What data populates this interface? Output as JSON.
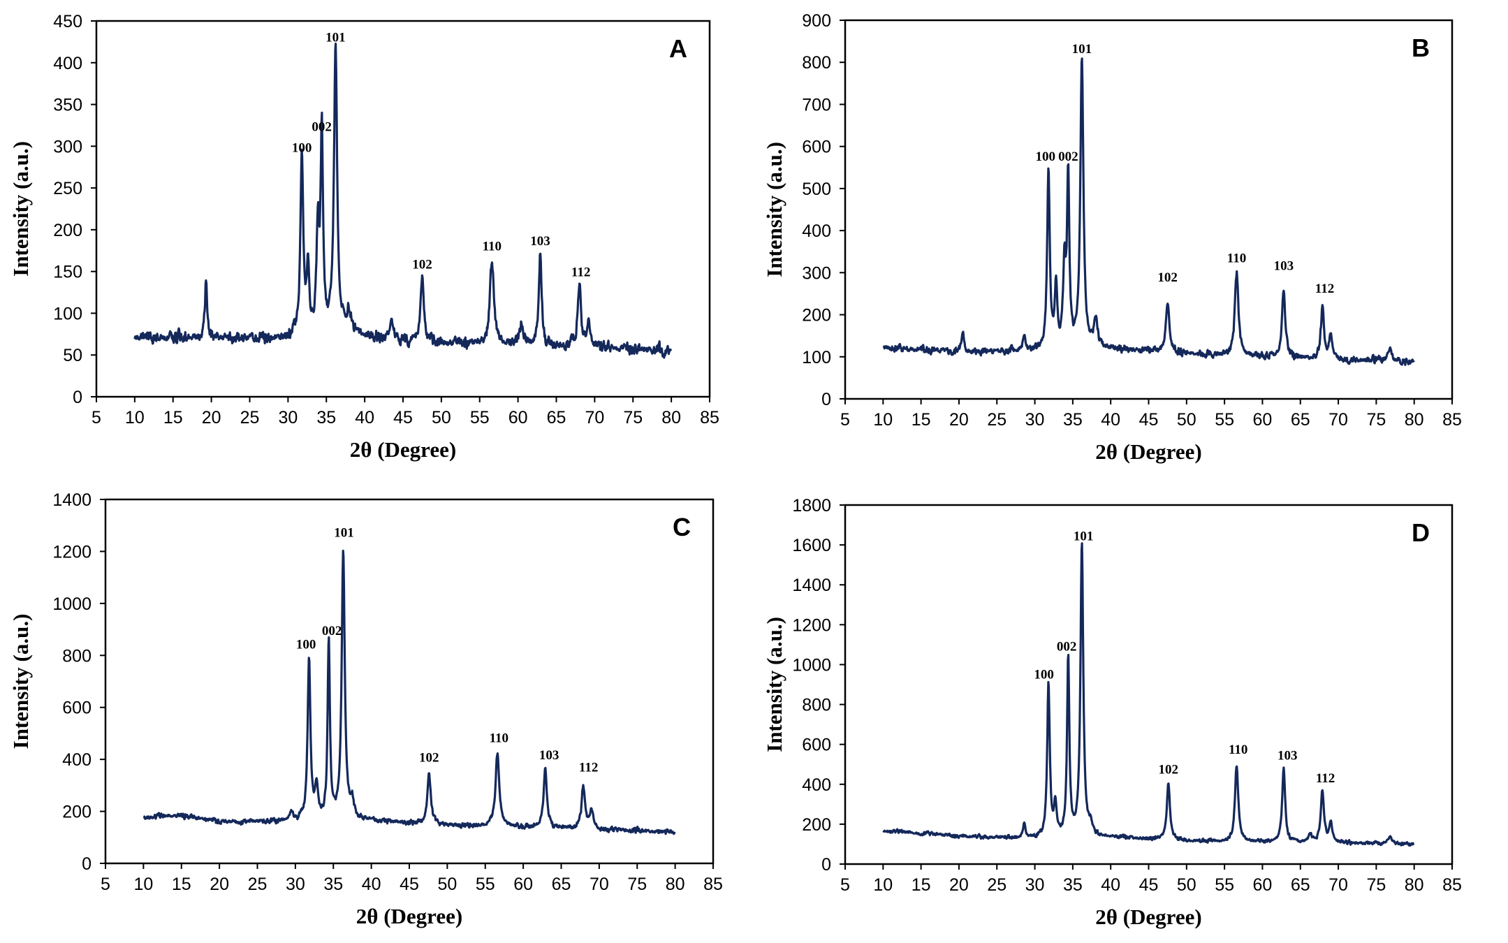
{
  "chart_data": [
    {
      "type": "line",
      "panel": "A",
      "xlabel": "2θ (Degree)",
      "ylabel": "Intensity (a.u.)",
      "xlim": [
        5,
        85
      ],
      "ylim": [
        0,
        450
      ],
      "xticks": [
        5,
        10,
        15,
        20,
        25,
        30,
        35,
        40,
        45,
        50,
        55,
        60,
        65,
        70,
        75,
        80,
        85
      ],
      "yticks": [
        0,
        50,
        100,
        150,
        200,
        250,
        300,
        350,
        400,
        450
      ],
      "line_color": "#14285a",
      "baseline": [
        [
          10,
          72
        ],
        [
          30,
          70
        ],
        [
          36,
          78
        ],
        [
          45,
          66
        ],
        [
          60,
          62
        ],
        [
          80,
          55
        ]
      ],
      "noise": 9,
      "seed": 3,
      "peaks": [
        {
          "x": 19.3,
          "h": 70,
          "w": 0.16
        },
        {
          "x": 31.8,
          "h": 218,
          "w": 0.22
        },
        {
          "x": 32.6,
          "h": 80,
          "w": 0.18
        },
        {
          "x": 33.9,
          "h": 120,
          "w": 0.2
        },
        {
          "x": 34.4,
          "h": 238,
          "w": 0.18
        },
        {
          "x": 36.2,
          "h": 345,
          "w": 0.24
        },
        {
          "x": 38.0,
          "h": 28,
          "w": 0.3
        },
        {
          "x": 43.5,
          "h": 25,
          "w": 0.3
        },
        {
          "x": 47.5,
          "h": 80,
          "w": 0.25
        },
        {
          "x": 56.6,
          "h": 104,
          "w": 0.28
        },
        {
          "x": 60.5,
          "h": 24,
          "w": 0.25
        },
        {
          "x": 62.9,
          "h": 110,
          "w": 0.22
        },
        {
          "x": 68.0,
          "h": 76,
          "w": 0.25
        },
        {
          "x": 69.2,
          "h": 30,
          "w": 0.25
        }
      ],
      "peak_labels": [
        {
          "text": "100",
          "x": 31.8,
          "y": 290
        },
        {
          "text": "002",
          "x": 34.4,
          "y": 315
        },
        {
          "text": "101",
          "x": 36.2,
          "y": 422
        },
        {
          "text": "102",
          "x": 47.5,
          "y": 150
        },
        {
          "text": "110",
          "x": 56.6,
          "y": 172
        },
        {
          "text": "103",
          "x": 62.9,
          "y": 178
        },
        {
          "text": "112",
          "x": 68.2,
          "y": 141
        }
      ]
    },
    {
      "type": "line",
      "panel": "B",
      "xlabel": "2θ (Degree)",
      "ylabel": "Intensity (a.u.)",
      "xlim": [
        5,
        85
      ],
      "ylim": [
        0,
        900
      ],
      "xticks": [
        5,
        10,
        15,
        20,
        25,
        30,
        35,
        40,
        45,
        50,
        55,
        60,
        65,
        70,
        75,
        80,
        85
      ],
      "yticks": [
        0,
        100,
        200,
        300,
        400,
        500,
        600,
        700,
        800,
        900
      ],
      "line_color": "#14285a",
      "baseline": [
        [
          10,
          122
        ],
        [
          20,
          112
        ],
        [
          30,
          112
        ],
        [
          40,
          118
        ],
        [
          50,
          108
        ],
        [
          60,
          100
        ],
        [
          80,
          88
        ]
      ],
      "noise": 11,
      "seed": 7,
      "peaks": [
        {
          "x": 20.5,
          "h": 50,
          "w": 0.18
        },
        {
          "x": 28.6,
          "h": 40,
          "w": 0.2
        },
        {
          "x": 31.8,
          "h": 430,
          "w": 0.2
        },
        {
          "x": 32.8,
          "h": 150,
          "w": 0.2
        },
        {
          "x": 33.9,
          "h": 190,
          "w": 0.2
        },
        {
          "x": 34.4,
          "h": 410,
          "w": 0.18
        },
        {
          "x": 36.2,
          "h": 690,
          "w": 0.24
        },
        {
          "x": 38.0,
          "h": 70,
          "w": 0.3
        },
        {
          "x": 47.5,
          "h": 120,
          "w": 0.26
        },
        {
          "x": 56.6,
          "h": 195,
          "w": 0.28
        },
        {
          "x": 62.8,
          "h": 165,
          "w": 0.25
        },
        {
          "x": 67.9,
          "h": 118,
          "w": 0.25
        },
        {
          "x": 69.0,
          "h": 55,
          "w": 0.25
        },
        {
          "x": 76.8,
          "h": 30,
          "w": 0.3
        }
      ],
      "peak_labels": [
        {
          "text": "100",
          "x": 31.4,
          "y": 560
        },
        {
          "text": "002",
          "x": 34.4,
          "y": 560
        },
        {
          "text": "101",
          "x": 36.2,
          "y": 815
        },
        {
          "text": "102",
          "x": 47.5,
          "y": 272
        },
        {
          "text": "110",
          "x": 56.6,
          "y": 318
        },
        {
          "text": "103",
          "x": 62.8,
          "y": 300
        },
        {
          "text": "112",
          "x": 68.2,
          "y": 246
        }
      ]
    },
    {
      "type": "line",
      "panel": "C",
      "xlabel": "2θ (Degree)",
      "ylabel": "Intensity (a.u.)",
      "xlim": [
        5,
        85
      ],
      "ylim": [
        0,
        1400
      ],
      "xticks": [
        5,
        10,
        15,
        20,
        25,
        30,
        35,
        40,
        45,
        50,
        55,
        60,
        65,
        70,
        75,
        80,
        85
      ],
      "yticks": [
        0,
        200,
        400,
        600,
        800,
        1000,
        1200,
        1400
      ],
      "line_color": "#14285a",
      "baseline": [
        [
          10,
          175
        ],
        [
          15,
          185
        ],
        [
          20,
          160
        ],
        [
          30,
          160
        ],
        [
          40,
          165
        ],
        [
          50,
          145
        ],
        [
          60,
          140
        ],
        [
          80,
          120
        ]
      ],
      "noise": 13,
      "seed": 11,
      "peaks": [
        {
          "x": 29.5,
          "h": 40,
          "w": 0.3
        },
        {
          "x": 31.8,
          "h": 620,
          "w": 0.22
        },
        {
          "x": 32.8,
          "h": 120,
          "w": 0.25
        },
        {
          "x": 34.4,
          "h": 690,
          "w": 0.18
        },
        {
          "x": 36.3,
          "h": 1040,
          "w": 0.24
        },
        {
          "x": 37.5,
          "h": 60,
          "w": 0.3
        },
        {
          "x": 47.6,
          "h": 200,
          "w": 0.26
        },
        {
          "x": 56.6,
          "h": 280,
          "w": 0.3
        },
        {
          "x": 62.9,
          "h": 220,
          "w": 0.26
        },
        {
          "x": 67.9,
          "h": 160,
          "w": 0.26
        },
        {
          "x": 69.0,
          "h": 70,
          "w": 0.3
        }
      ],
      "peak_labels": [
        {
          "text": "100",
          "x": 31.4,
          "y": 815
        },
        {
          "text": "002",
          "x": 34.8,
          "y": 868
        },
        {
          "text": "101",
          "x": 36.4,
          "y": 1245
        },
        {
          "text": "102",
          "x": 47.6,
          "y": 380
        },
        {
          "text": "110",
          "x": 56.8,
          "y": 455
        },
        {
          "text": "103",
          "x": 63.4,
          "y": 390
        },
        {
          "text": "112",
          "x": 68.6,
          "y": 342
        }
      ]
    },
    {
      "type": "line",
      "panel": "D",
      "xlabel": "2θ (Degree)",
      "ylabel": "Intensity (a.u.)",
      "xlim": [
        5,
        85
      ],
      "ylim": [
        0,
        1800
      ],
      "xticks": [
        5,
        10,
        15,
        20,
        25,
        30,
        35,
        40,
        45,
        50,
        55,
        60,
        65,
        70,
        75,
        80,
        85
      ],
      "yticks": [
        0,
        200,
        400,
        600,
        800,
        1000,
        1200,
        1400,
        1600,
        1800
      ],
      "line_color": "#14285a",
      "baseline": [
        [
          10,
          165
        ],
        [
          15,
          155
        ],
        [
          20,
          140
        ],
        [
          30,
          130
        ],
        [
          40,
          135
        ],
        [
          50,
          115
        ],
        [
          60,
          110
        ],
        [
          80,
          100
        ]
      ],
      "noise": 12,
      "seed": 19,
      "peaks": [
        {
          "x": 28.6,
          "h": 70,
          "w": 0.18
        },
        {
          "x": 31.8,
          "h": 770,
          "w": 0.2
        },
        {
          "x": 32.7,
          "h": 160,
          "w": 0.2
        },
        {
          "x": 34.4,
          "h": 900,
          "w": 0.18
        },
        {
          "x": 36.2,
          "h": 1470,
          "w": 0.22
        },
        {
          "x": 37.3,
          "h": 50,
          "w": 0.3
        },
        {
          "x": 47.6,
          "h": 290,
          "w": 0.24
        },
        {
          "x": 56.6,
          "h": 385,
          "w": 0.26
        },
        {
          "x": 62.8,
          "h": 365,
          "w": 0.24
        },
        {
          "x": 66.3,
          "h": 40,
          "w": 0.25
        },
        {
          "x": 67.9,
          "h": 260,
          "w": 0.24
        },
        {
          "x": 69.0,
          "h": 100,
          "w": 0.25
        },
        {
          "x": 76.8,
          "h": 35,
          "w": 0.3
        }
      ],
      "peak_labels": [
        {
          "text": "100",
          "x": 31.2,
          "y": 915
        },
        {
          "text": "002",
          "x": 34.2,
          "y": 1055
        },
        {
          "text": "101",
          "x": 36.4,
          "y": 1610
        },
        {
          "text": "102",
          "x": 47.6,
          "y": 440
        },
        {
          "text": "110",
          "x": 56.8,
          "y": 540
        },
        {
          "text": "103",
          "x": 63.3,
          "y": 510
        },
        {
          "text": "112",
          "x": 68.3,
          "y": 395
        }
      ]
    }
  ]
}
